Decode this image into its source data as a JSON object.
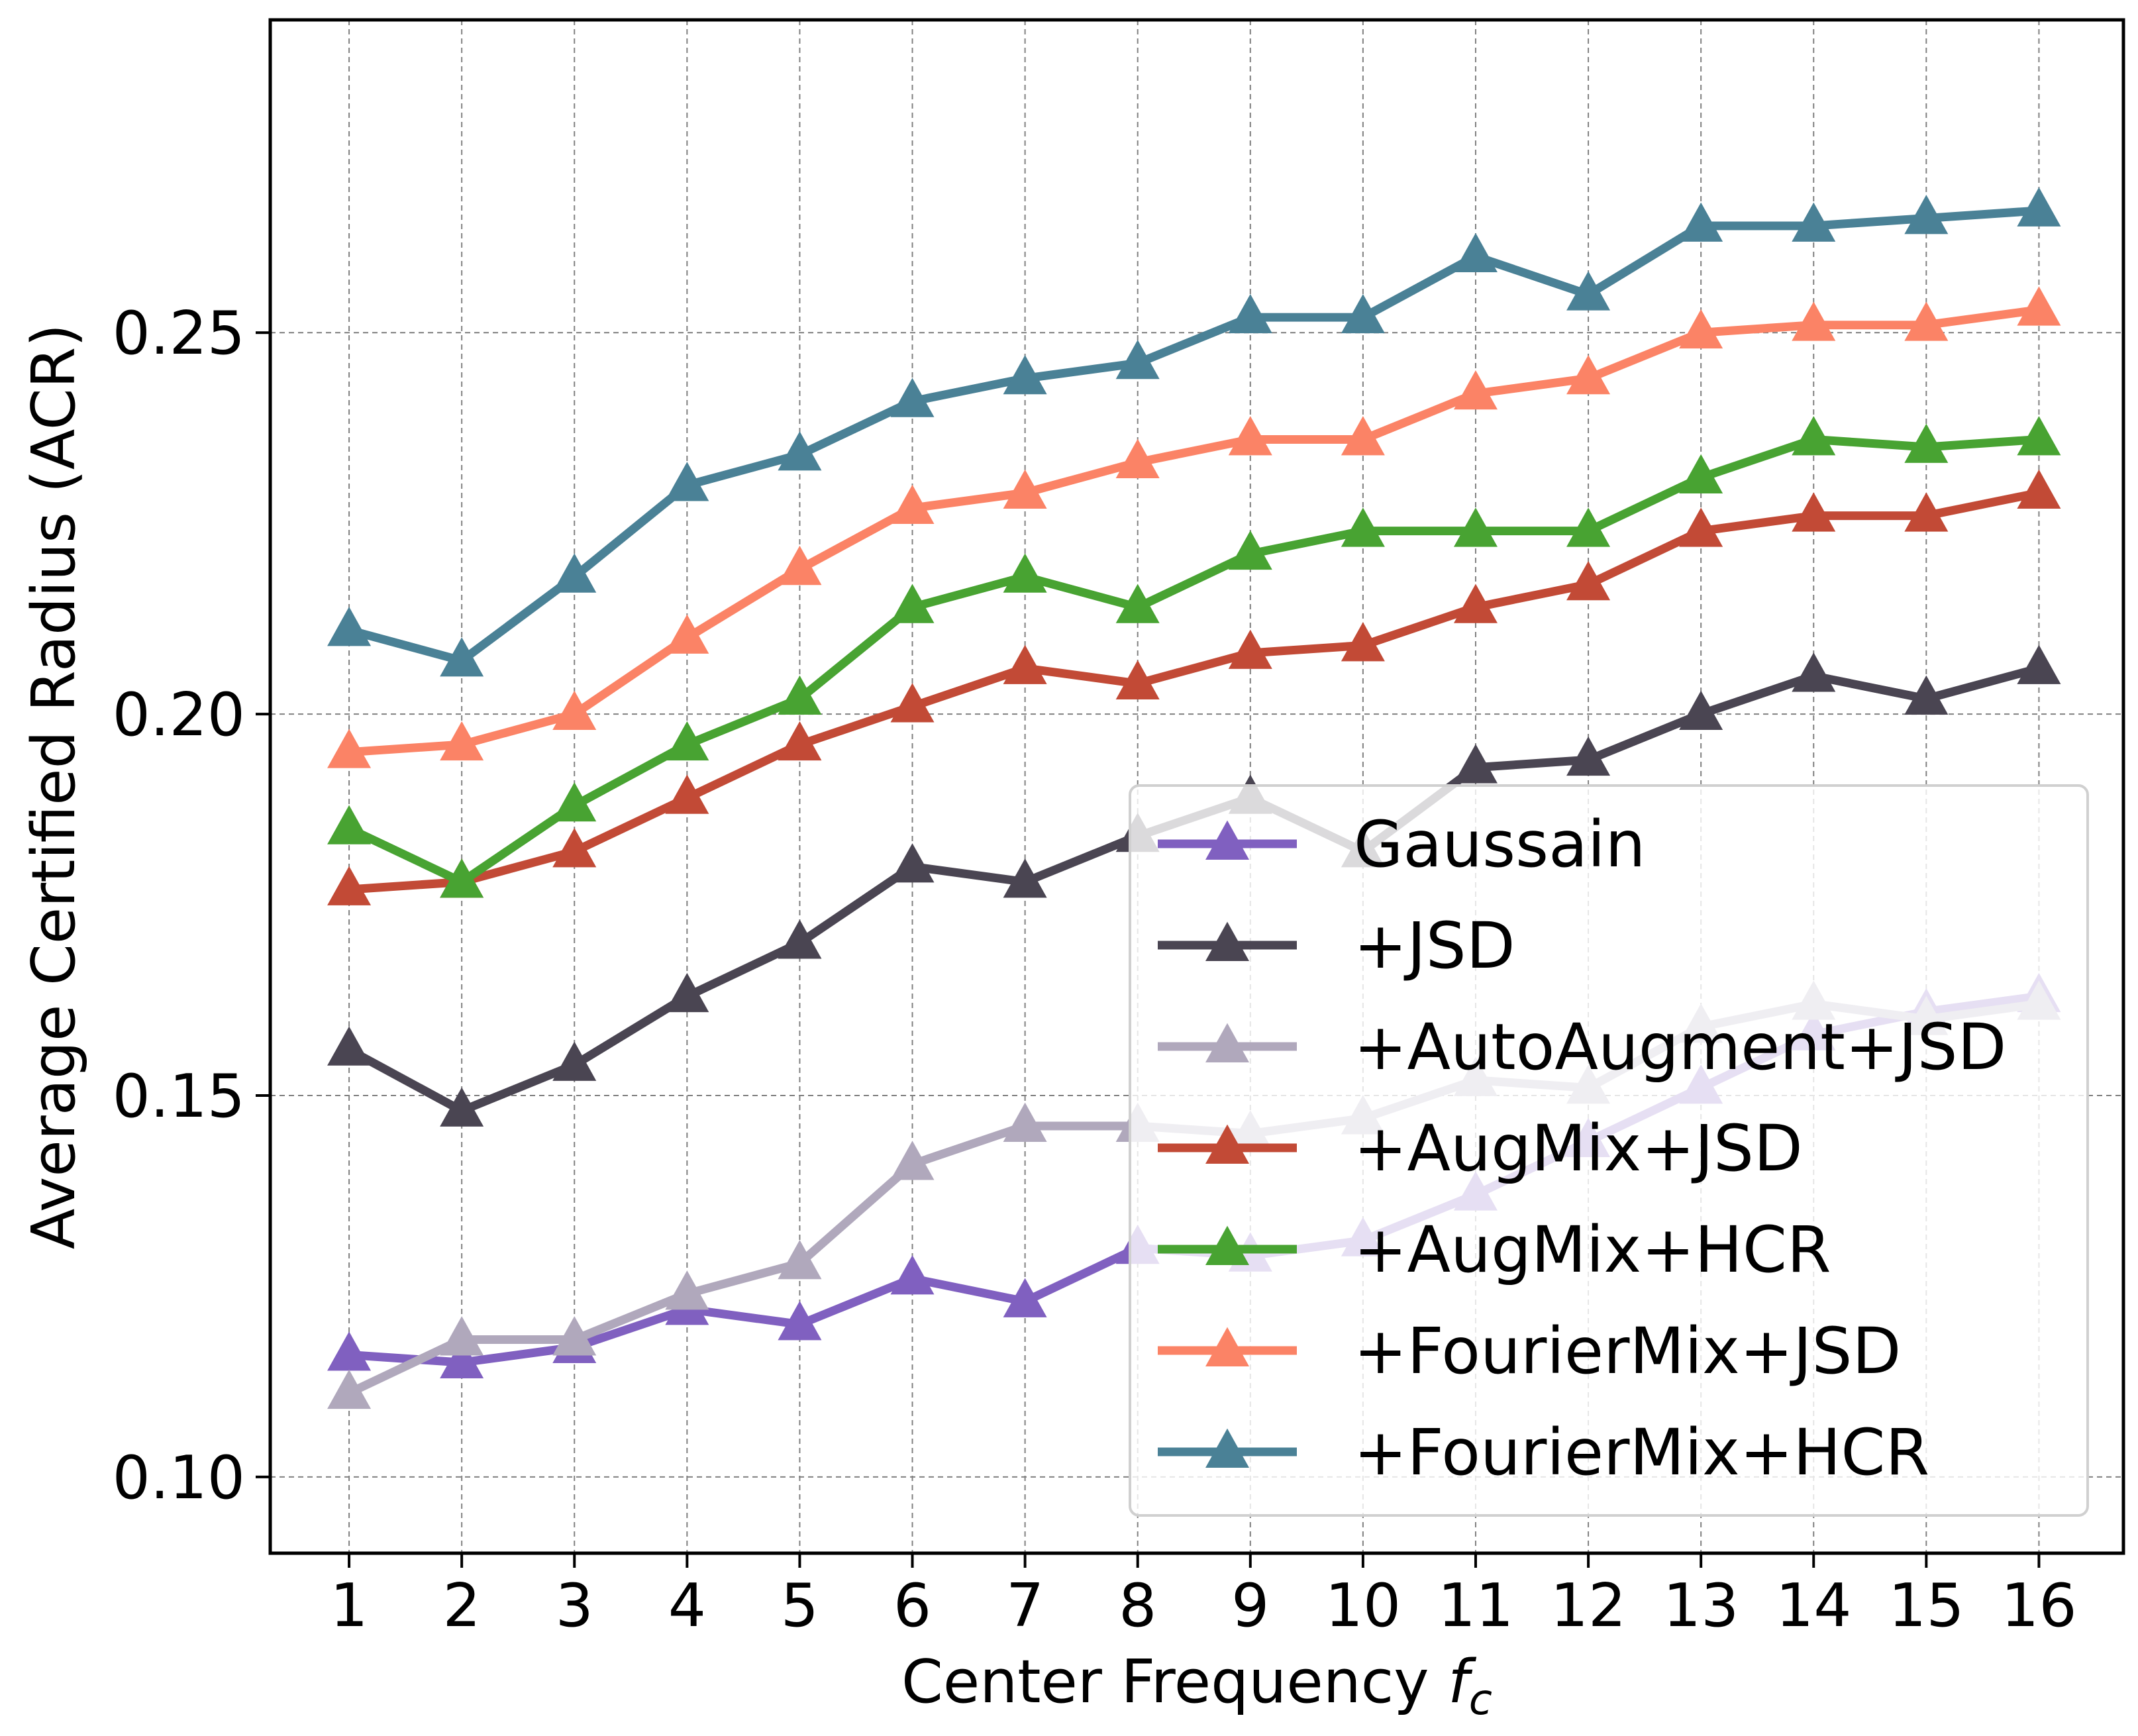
{
  "chart_data": {
    "type": "line",
    "xlabel": "Center Frequency",
    "xlabel_symbol": "f",
    "xlabel_subscript": "c",
    "ylabel": "Average Certified Radius (ACR)",
    "x": [
      1,
      2,
      3,
      4,
      5,
      6,
      7,
      8,
      9,
      10,
      11,
      12,
      13,
      14,
      15,
      16
    ],
    "x_tick_labels": [
      "1",
      "2",
      "3",
      "4",
      "5",
      "6",
      "7",
      "8",
      "9",
      "10",
      "11",
      "12",
      "13",
      "14",
      "15",
      "16"
    ],
    "y_ticks": [
      0.1,
      0.15,
      0.2,
      0.25
    ],
    "y_tick_labels": [
      "0.10",
      "0.15",
      "0.20",
      "0.25"
    ],
    "xlim": [
      0.3,
      16.75
    ],
    "ylim": [
      0.09,
      0.291
    ],
    "grid": true,
    "legend_position": "lower-right",
    "marker": "triangle-up",
    "series": [
      {
        "name": "Gaussain",
        "color": "#8060c0",
        "values": [
          0.116,
          0.115,
          0.117,
          0.122,
          0.12,
          0.126,
          0.123,
          0.13,
          0.129,
          0.131,
          0.137,
          0.144,
          0.151,
          0.158,
          0.161,
          0.163
        ]
      },
      {
        "name": "+JSD",
        "color": "#4a4552",
        "values": [
          0.156,
          0.148,
          0.154,
          0.163,
          0.17,
          0.18,
          0.178,
          0.184,
          0.189,
          0.182,
          0.193,
          0.194,
          0.2,
          0.205,
          0.202,
          0.206
        ]
      },
      {
        "name": "+AutoAugment+JSD",
        "color": "#b0a8bc",
        "values": [
          0.111,
          0.118,
          0.118,
          0.124,
          0.128,
          0.141,
          0.146,
          0.146,
          0.145,
          0.147,
          0.152,
          0.151,
          0.159,
          0.162,
          0.16,
          0.162
        ]
      },
      {
        "name": "+AugMix+JSD",
        "color": "#c24a36",
        "values": [
          0.177,
          0.178,
          0.182,
          0.189,
          0.196,
          0.201,
          0.206,
          0.204,
          0.208,
          0.209,
          0.214,
          0.217,
          0.224,
          0.226,
          0.226,
          0.229
        ]
      },
      {
        "name": "+AugMix+HCR",
        "color": "#48a332",
        "values": [
          0.185,
          0.178,
          0.188,
          0.196,
          0.202,
          0.214,
          0.218,
          0.214,
          0.221,
          0.224,
          0.224,
          0.224,
          0.231,
          0.236,
          0.235,
          0.236
        ]
      },
      {
        "name": "+FourierMix+JSD",
        "color": "#fb8366",
        "values": [
          0.195,
          0.196,
          0.2,
          0.21,
          0.219,
          0.227,
          0.229,
          0.233,
          0.236,
          0.236,
          0.242,
          0.244,
          0.25,
          0.251,
          0.251,
          0.253
        ]
      },
      {
        "name": "+FourierMix+HCR",
        "color": "#4a8196",
        "values": [
          0.211,
          0.207,
          0.218,
          0.23,
          0.234,
          0.241,
          0.244,
          0.246,
          0.252,
          0.252,
          0.26,
          0.255,
          0.264,
          0.264,
          0.265,
          0.266
        ]
      }
    ]
  }
}
